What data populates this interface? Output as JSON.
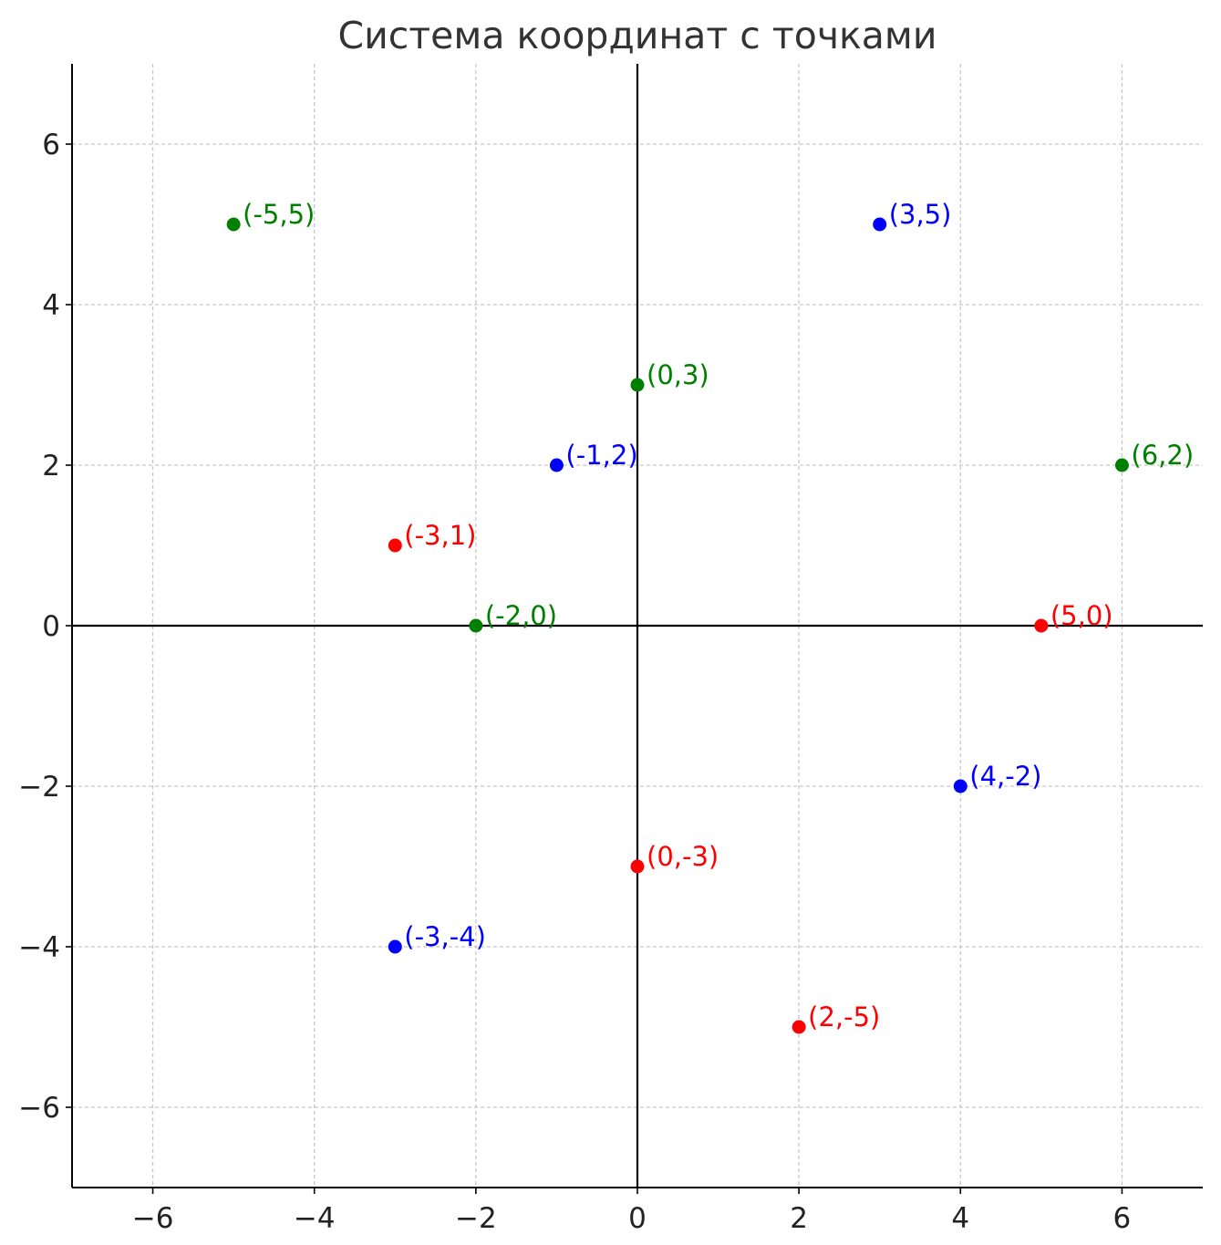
{
  "chart_data": {
    "type": "scatter",
    "title": "Система координат с точками",
    "xlabel": "",
    "ylabel": "",
    "xlim": [
      -7,
      7
    ],
    "ylim": [
      -7,
      7
    ],
    "xticks": [
      -6,
      -4,
      -2,
      0,
      2,
      4,
      6
    ],
    "yticks": [
      -6,
      -4,
      -2,
      0,
      2,
      4,
      6
    ],
    "xtick_labels": [
      "−6",
      "−4",
      "−2",
      "0",
      "2",
      "4",
      "6"
    ],
    "ytick_labels": [
      "−6",
      "−4",
      "−2",
      "0",
      "2",
      "4",
      "6"
    ],
    "grid": true,
    "grid_style": "dashed",
    "axes_lines_through_origin": true,
    "colors": {
      "red": "#ff0000",
      "blue": "#0000ff",
      "green": "#008000",
      "grid": "#c8c8c8",
      "axis": "#000000",
      "text": "#222222"
    },
    "points": [
      {
        "x": -3,
        "y": 1,
        "label": "(-3,1)",
        "color": "red"
      },
      {
        "x": 0,
        "y": -3,
        "label": "(0,-3)",
        "color": "red"
      },
      {
        "x": 2,
        "y": -5,
        "label": "(2,-5)",
        "color": "red"
      },
      {
        "x": 5,
        "y": 0,
        "label": "(5,0)",
        "color": "red"
      },
      {
        "x": -1,
        "y": 2,
        "label": "(-1,2)",
        "color": "blue"
      },
      {
        "x": 3,
        "y": 5,
        "label": "(3,5)",
        "color": "blue"
      },
      {
        "x": 4,
        "y": -2,
        "label": "(4,-2)",
        "color": "blue"
      },
      {
        "x": -3,
        "y": -4,
        "label": "(-3,-4)",
        "color": "blue"
      },
      {
        "x": -5,
        "y": 5,
        "label": "(-5,5)",
        "color": "green"
      },
      {
        "x": 0,
        "y": 3,
        "label": "(0,3)",
        "color": "green"
      },
      {
        "x": -2,
        "y": 0,
        "label": "(-2,0)",
        "color": "green"
      },
      {
        "x": 6,
        "y": 2,
        "label": "(6,2)",
        "color": "green"
      }
    ]
  }
}
